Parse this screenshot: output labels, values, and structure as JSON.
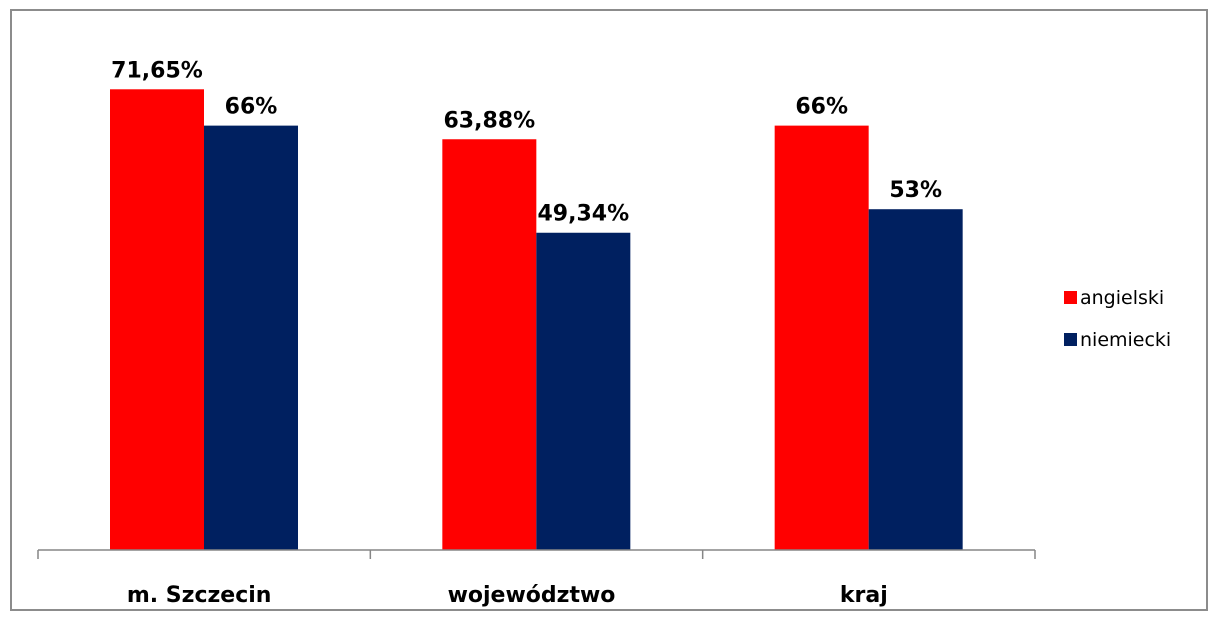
{
  "chart_data": {
    "type": "bar",
    "categories": [
      "m. Szczecin",
      "województwo",
      "kraj"
    ],
    "series": [
      {
        "name": "angielski",
        "values": [
          71.65,
          63.88,
          66
        ],
        "labels": [
          "71,65%",
          "63,88%",
          "66%"
        ],
        "color": "#ff0000"
      },
      {
        "name": "niemiecki",
        "values": [
          66,
          49.34,
          53
        ],
        "labels": [
          "66%",
          "49,34%",
          "53%"
        ],
        "color": "#002060"
      }
    ],
    "ylim": [
      0,
      80
    ],
    "grid": false,
    "legend_position": "right"
  }
}
